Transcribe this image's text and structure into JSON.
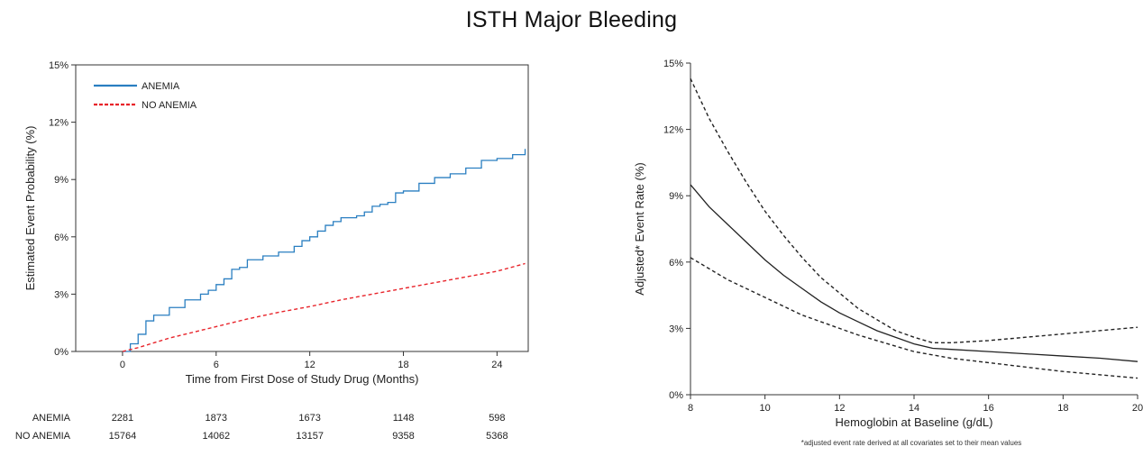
{
  "figure_title": "ISTH Major Bleeding",
  "chart_data": [
    {
      "type": "line",
      "title": "",
      "xlabel": "Time from First Dose of Study Drug (Months)",
      "ylabel": "Estimated Event Probability (%)",
      "xlim": [
        -3,
        26
      ],
      "ylim": [
        0,
        15
      ],
      "xticks": [
        0,
        6,
        12,
        18,
        24
      ],
      "xtick_labels": [
        "0",
        "6",
        "12",
        "18",
        "24"
      ],
      "yticks": [
        0,
        3,
        6,
        9,
        12,
        15
      ],
      "ytick_labels": [
        "0%",
        "3%",
        "6%",
        "9%",
        "12%",
        "15%"
      ],
      "legend_position": "top-left",
      "series": [
        {
          "name": "ANEMIA",
          "color": "#2a7fc1",
          "style": "solid-step",
          "x": [
            0,
            0.5,
            1,
            1.5,
            2,
            3,
            4,
            5,
            5.5,
            6,
            6.5,
            7,
            7.5,
            8,
            9,
            10,
            11,
            11.5,
            12,
            12.5,
            13,
            13.5,
            14,
            15,
            15.5,
            16,
            16.5,
            17,
            17.5,
            18,
            19,
            20,
            21,
            22,
            23,
            24,
            25,
            25.8
          ],
          "values": [
            0,
            0.4,
            0.9,
            1.6,
            1.9,
            2.3,
            2.7,
            3.0,
            3.2,
            3.5,
            3.8,
            4.3,
            4.4,
            4.8,
            5.0,
            5.2,
            5.5,
            5.8,
            6.0,
            6.3,
            6.6,
            6.8,
            7.0,
            7.1,
            7.3,
            7.6,
            7.7,
            7.8,
            8.3,
            8.4,
            8.8,
            9.1,
            9.3,
            9.6,
            10.0,
            10.1,
            10.3,
            10.6
          ]
        },
        {
          "name": "NO ANEMIA",
          "color": "#e8232a",
          "style": "dashed",
          "x": [
            0,
            1,
            2,
            3,
            4,
            5,
            6,
            8,
            10,
            12,
            14,
            16,
            18,
            20,
            22,
            24,
            25.8
          ],
          "values": [
            0,
            0.2,
            0.45,
            0.7,
            0.9,
            1.1,
            1.3,
            1.7,
            2.05,
            2.35,
            2.7,
            3.0,
            3.3,
            3.6,
            3.9,
            4.2,
            4.6
          ]
        }
      ]
    },
    {
      "type": "line",
      "title": "",
      "xlabel": "Hemoglobin at Baseline (g/dL)",
      "ylabel": "Adjusted* Event Rate (%)",
      "xlim": [
        8,
        20
      ],
      "ylim": [
        0,
        15
      ],
      "xticks": [
        8,
        10,
        12,
        14,
        16,
        18,
        20
      ],
      "xtick_labels": [
        "8",
        "10",
        "12",
        "14",
        "16",
        "18",
        "20"
      ],
      "yticks": [
        0,
        3,
        6,
        9,
        12,
        15
      ],
      "ytick_labels": [
        "0%",
        "3%",
        "6%",
        "9%",
        "12%",
        "15%"
      ],
      "footnote": "*adjusted event rate derived at all covariates set to their mean values",
      "series": [
        {
          "color": "#222222",
          "style": "solid",
          "x": [
            8,
            8.5,
            9,
            9.5,
            10,
            10.5,
            11,
            11.5,
            12,
            12.5,
            13,
            13.5,
            14,
            14.5,
            15,
            16,
            17,
            18,
            19,
            20
          ],
          "values": [
            9.5,
            8.5,
            7.7,
            6.9,
            6.1,
            5.4,
            4.8,
            4.2,
            3.7,
            3.3,
            2.9,
            2.6,
            2.3,
            2.1,
            2.05,
            1.95,
            1.85,
            1.75,
            1.65,
            1.5
          ]
        },
        {
          "color": "#222222",
          "style": "dashed",
          "x": [
            8,
            8.5,
            9,
            9.5,
            10,
            10.5,
            11,
            11.5,
            12,
            12.5,
            13,
            13.5,
            14,
            14.5,
            15,
            16,
            17,
            18,
            19,
            20
          ],
          "values": [
            14.3,
            12.5,
            11.0,
            9.6,
            8.3,
            7.2,
            6.2,
            5.3,
            4.6,
            3.9,
            3.4,
            2.9,
            2.6,
            2.35,
            2.35,
            2.45,
            2.6,
            2.75,
            2.9,
            3.05
          ]
        },
        {
          "color": "#222222",
          "style": "dashed",
          "x": [
            8,
            8.5,
            9,
            9.5,
            10,
            10.5,
            11,
            11.5,
            12,
            12.5,
            13,
            13.5,
            14,
            14.5,
            15,
            16,
            17,
            18,
            19,
            20
          ],
          "values": [
            6.2,
            5.7,
            5.2,
            4.8,
            4.4,
            4.0,
            3.6,
            3.3,
            3.0,
            2.7,
            2.45,
            2.2,
            1.95,
            1.8,
            1.65,
            1.45,
            1.25,
            1.05,
            0.9,
            0.75
          ]
        }
      ]
    }
  ],
  "risk_table": {
    "rows": [
      {
        "label": "ANEMIA",
        "values": [
          "2281",
          "1873",
          "1673",
          "1148",
          "598"
        ]
      },
      {
        "label": "NO ANEMIA",
        "values": [
          "15764",
          "14062",
          "13157",
          "9358",
          "5368"
        ]
      }
    ]
  }
}
